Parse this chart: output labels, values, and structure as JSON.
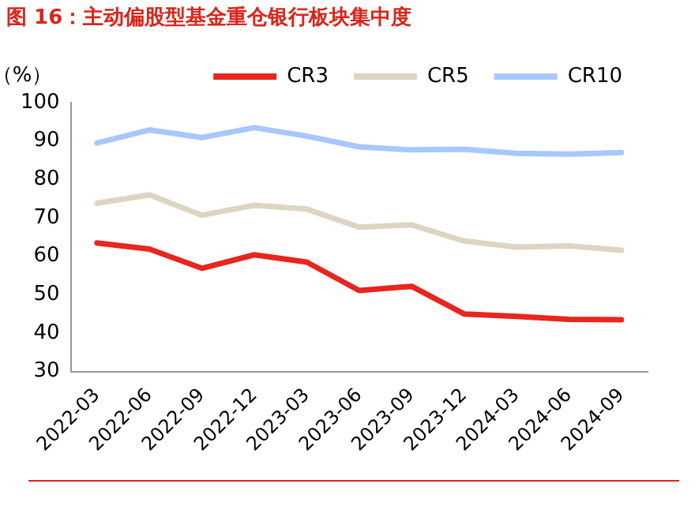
{
  "chart_data": {
    "type": "line",
    "title": "图 16：主动偏股型基金重仓银行板块集中度",
    "ylabel": "（%）",
    "categories": [
      "2022-03",
      "2022-06",
      "2022-09",
      "2022-12",
      "2023-03",
      "2023-06",
      "2023-09",
      "2023-12",
      "2024-03",
      "2024-06",
      "2024-09"
    ],
    "series": [
      {
        "name": "CR3",
        "color": "#e8251f",
        "values": [
          63.5,
          61.9,
          56.9,
          60.4,
          58.5,
          51.1,
          52.2,
          45.0,
          44.4,
          43.6,
          43.5
        ]
      },
      {
        "name": "CR5",
        "color": "#ddd5c2",
        "values": [
          73.8,
          76.0,
          70.7,
          73.3,
          72.3,
          67.6,
          68.2,
          64.0,
          62.4,
          62.7,
          61.6
        ]
      },
      {
        "name": "CR10",
        "color": "#a6c8ff",
        "values": [
          89.5,
          92.9,
          90.9,
          93.5,
          91.3,
          88.5,
          87.7,
          87.9,
          86.8,
          86.6,
          87.0
        ]
      }
    ],
    "ylim": [
      30,
      100
    ],
    "yticks": [
      30,
      40,
      50,
      60,
      70,
      80,
      90,
      100
    ],
    "grid": false,
    "legend": "top",
    "marker": "none",
    "line_style": "solid"
  }
}
